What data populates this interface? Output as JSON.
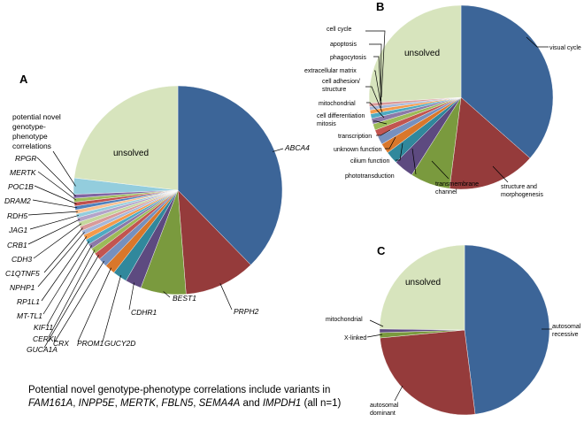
{
  "chart_data": [
    {
      "id": "A",
      "type": "pie",
      "panel_label": "A",
      "title": "",
      "unsolved_label": "unsolved",
      "slices": [
        {
          "label": "ABCA4",
          "value": 37.5,
          "color": "#3c6598"
        },
        {
          "label": "PRPH2",
          "value": 11.0,
          "color": "#953b3b"
        },
        {
          "label": "BEST1",
          "value": 7.0,
          "color": "#7a9a3e"
        },
        {
          "label": "CDHR1",
          "value": 2.5,
          "color": "#5d4a80"
        },
        {
          "label": "GUCY2D",
          "value": 2.2,
          "color": "#31889c"
        },
        {
          "label": "PROM1",
          "value": 1.6,
          "color": "#d9772b"
        },
        {
          "label": "CRX",
          "value": 1.4,
          "color": "#7690be"
        },
        {
          "label": "GUCA1A",
          "value": 1.1,
          "color": "#c25550"
        },
        {
          "label": "CERKL",
          "value": 0.9,
          "color": "#9cbb58"
        },
        {
          "label": "KIF11",
          "value": 0.8,
          "color": "#8c79a8"
        },
        {
          "label": "MT-TL1",
          "value": 0.8,
          "color": "#4eaac2"
        },
        {
          "label": "RP1L1",
          "value": 0.8,
          "color": "#f39a4b"
        },
        {
          "label": "NPHP1",
          "value": 0.7,
          "color": "#a6b8da"
        },
        {
          "label": "C1QTNF5",
          "value": 0.7,
          "color": "#d99a99"
        },
        {
          "label": "CDH3",
          "value": 0.7,
          "color": "#c4d79c"
        },
        {
          "label": "CRB1",
          "value": 0.7,
          "color": "#b3a3c9"
        },
        {
          "label": "JAG1",
          "value": 0.6,
          "color": "#93cddd"
        },
        {
          "label": "RDH5",
          "value": 0.6,
          "color": "#fac08f"
        },
        {
          "label": "DRAM2",
          "value": 0.6,
          "color": "#4f81bd"
        },
        {
          "label": "POC1B",
          "value": 0.6,
          "color": "#c0504d"
        },
        {
          "label": "MERTK",
          "value": 0.6,
          "color": "#9bbb59"
        },
        {
          "label": "RPGR",
          "value": 0.6,
          "color": "#8064a2"
        },
        {
          "label": "potential novel genotype-phenotype correlations",
          "value": 2.5,
          "color": "#93cddd"
        },
        {
          "label": "unsolved",
          "value": 23.0,
          "color": "#d7e4bd"
        }
      ],
      "callouts": [
        "ABCA4",
        "PRPH2",
        "BEST1",
        "CDHR1",
        "GUCY2D",
        "PROM1",
        "CRX",
        "GUCA1A",
        "CERKL",
        "KIF11",
        "MT-TL1",
        "RP1L1",
        "NPHP1",
        "C1QTNF5",
        "CDH3",
        "CRB1",
        "JAG1",
        "RDH5",
        "DRAM2",
        "POC1B",
        "MERTK",
        "RPGR"
      ],
      "novel_label_lines": [
        "potential novel",
        "genotype-",
        "phenotype",
        "correlations"
      ]
    },
    {
      "id": "B",
      "type": "pie",
      "panel_label": "B",
      "title": "",
      "unsolved_label": "unsolved",
      "slices": [
        {
          "label": "visual cycle",
          "value": 36.5,
          "color": "#3c6598"
        },
        {
          "label": "structure and morphogenesis",
          "value": 15.5,
          "color": "#953b3b"
        },
        {
          "label": "transmembrane channel",
          "value": 7.0,
          "color": "#7a9a3e"
        },
        {
          "label": "phototransduction",
          "value": 3.5,
          "color": "#5d4a80"
        },
        {
          "label": "cilium function",
          "value": 2.2,
          "color": "#31889c"
        },
        {
          "label": "unknown function",
          "value": 1.8,
          "color": "#d9772b"
        },
        {
          "label": "transcription",
          "value": 1.5,
          "color": "#7690be"
        },
        {
          "label": "cell differentiation mitosis",
          "value": 1.2,
          "color": "#c25550"
        },
        {
          "label": "mitochondrial",
          "value": 1.1,
          "color": "#9cbb58"
        },
        {
          "label": "cell adhesion/ structure",
          "value": 1.0,
          "color": "#8c79a8"
        },
        {
          "label": "extracellular matrix",
          "value": 0.8,
          "color": "#4eaac2"
        },
        {
          "label": "phagocytosis",
          "value": 0.7,
          "color": "#f39a4b"
        },
        {
          "label": "apoptosis",
          "value": 0.6,
          "color": "#a6b8da"
        },
        {
          "label": "cell cycle",
          "value": 0.6,
          "color": "#d99a99"
        },
        {
          "label": "unsolved",
          "value": 26.0,
          "color": "#d7e4bd"
        }
      ],
      "labels": {
        "visual_cycle": "visual cycle",
        "structure_1": "structure and",
        "structure_2": "morphogenesis",
        "transmembrane_1": "transmembrane",
        "transmembrane_2": "channel",
        "phototransduction": "phototransduction",
        "cilium": "cilium function",
        "unknown": "unknown function",
        "transcription": "transcription",
        "celldiff_1": "cell differentiation",
        "celldiff_2": "mitosis",
        "mitochondrial": "mitochondrial",
        "adhesion_1": "cell adhesion/",
        "adhesion_2": "structure",
        "ecm": "extracellular matrix",
        "phagocytosis": "phagocytosis",
        "apoptosis": "apoptosis",
        "cellcycle": "cell cycle"
      }
    },
    {
      "id": "C",
      "type": "pie",
      "panel_label": "C",
      "title": "",
      "unsolved_label": "unsolved",
      "slices": [
        {
          "label": "autosomal recessive",
          "value": 48.0,
          "color": "#3c6598"
        },
        {
          "label": "autosomal dominant",
          "value": 25.5,
          "color": "#953b3b"
        },
        {
          "label": "X-linked",
          "value": 1.0,
          "color": "#7a9a3e"
        },
        {
          "label": "mitochondrial",
          "value": 0.7,
          "color": "#5d4a80"
        },
        {
          "label": "unsolved",
          "value": 24.8,
          "color": "#d7e4bd"
        }
      ],
      "labels": {
        "recessive_1": "autosomal",
        "recessive_2": "recessive",
        "dominant_1": "autosomal",
        "dominant_2": "dominant",
        "xlinked": "X-linked",
        "mitochondrial": "mitochondrial"
      }
    }
  ],
  "caption": {
    "line1": "Potential novel genotype-phenotype correlations include variants in",
    "genes": [
      "FAM161A",
      "INPP5E",
      "MERTK",
      "FBLN5",
      "SEMA4A",
      "IMPDH1"
    ],
    "sep": ", ",
    "and_word": " and ",
    "tail": " (all n=1)"
  }
}
